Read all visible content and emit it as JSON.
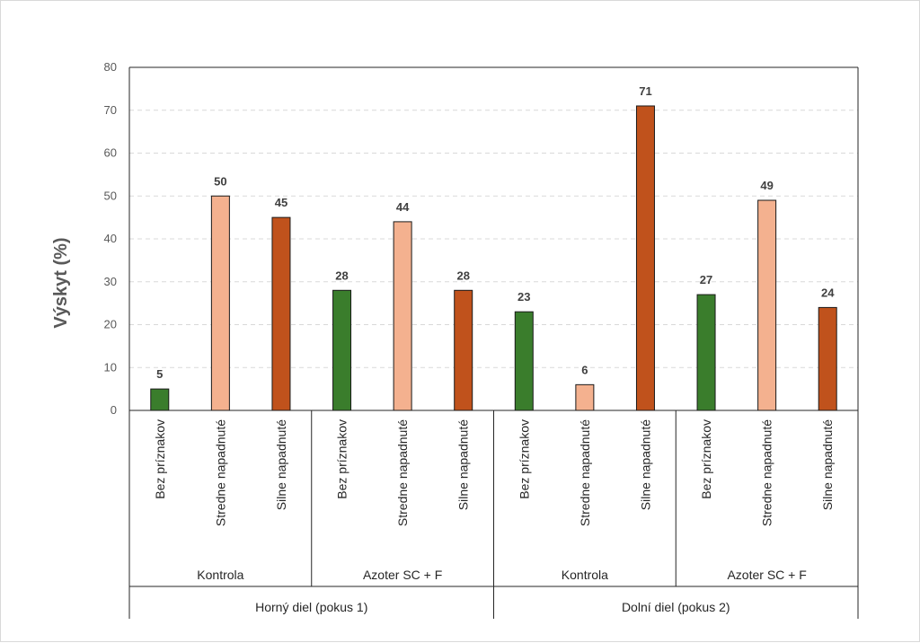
{
  "chart_data": {
    "type": "bar",
    "ylabel": "Výskyt (%)",
    "xlabel": "",
    "ylim": [
      0,
      80
    ],
    "yticks": [
      0,
      10,
      20,
      30,
      40,
      50,
      60,
      70,
      80
    ],
    "grid": true,
    "legend": "none",
    "categories": [
      "Bez príznakov",
      "Stredne napadnuté",
      "Silne napadnuté",
      "Bez príznakov",
      "Stredne napadnuté",
      "Silne napadnuté",
      "Bez príznakov",
      "Stredne napadnuté",
      "Silne napadnuté",
      "Bez príznakov",
      "Stredne napadnuté",
      "Silne napadnuté"
    ],
    "values": [
      5,
      50,
      45,
      28,
      44,
      28,
      23,
      6,
      71,
      27,
      49,
      24
    ],
    "colors": [
      "#3a7d2c",
      "#f4b18f",
      "#c0521c",
      "#3a7d2c",
      "#f4b18f",
      "#c0521c",
      "#3a7d2c",
      "#f4b18f",
      "#c0521c",
      "#3a7d2c",
      "#f4b18f",
      "#c0521c"
    ],
    "subgroups": [
      "Kontrola",
      "Azoter SC + F",
      "Kontrola",
      "Azoter SC + F"
    ],
    "groups": [
      "Horný diel (pokus 1)",
      "Dolní diel (pokus 2)"
    ]
  }
}
